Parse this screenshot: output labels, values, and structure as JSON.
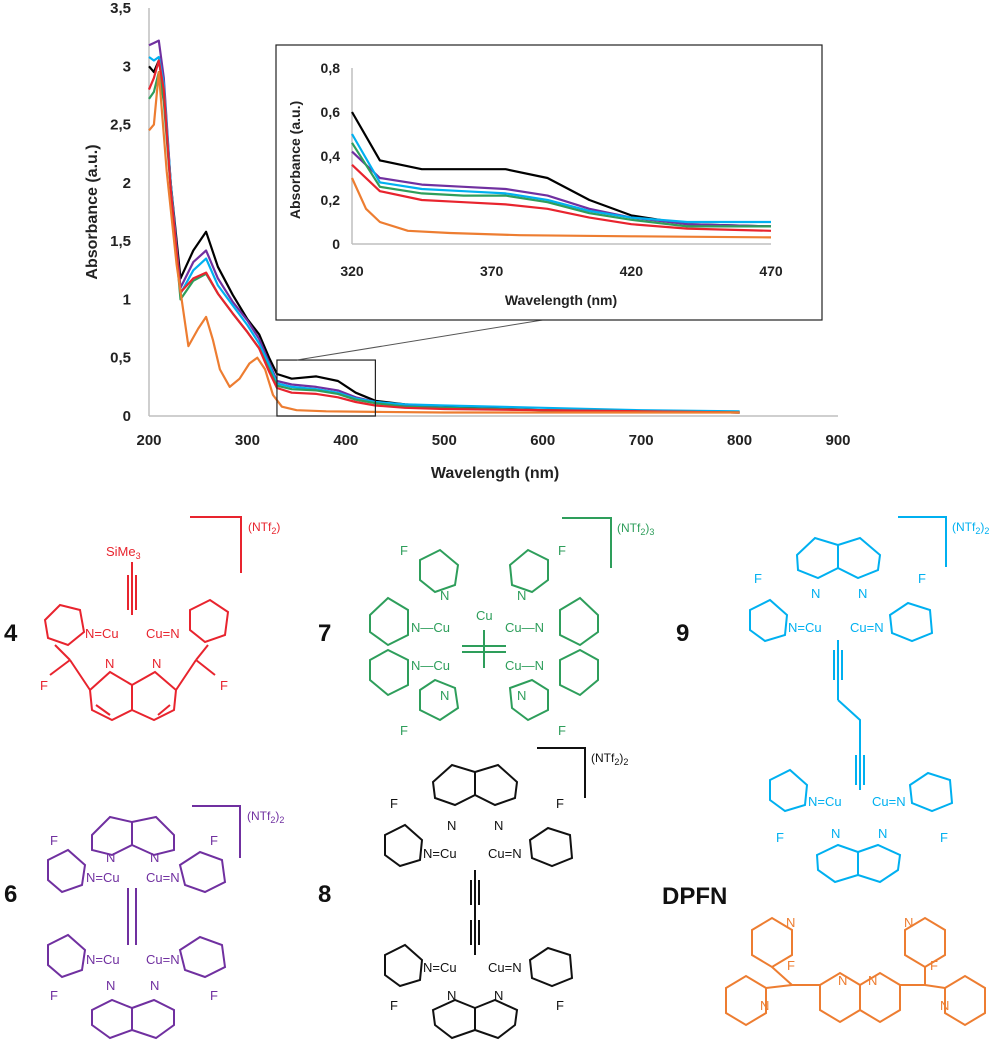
{
  "chart_data": [
    {
      "type": "line",
      "title": "",
      "xlabel": "Wavelength (nm)",
      "ylabel": "Absorbance (a.u.)",
      "xlim": [
        200,
        900
      ],
      "ylim": [
        0,
        3.5
      ],
      "x_ticks": [
        "200",
        "300",
        "400",
        "500",
        "600",
        "700",
        "800",
        "900"
      ],
      "y_ticks": [
        "0",
        "0,5",
        "1",
        "1,5",
        "2",
        "2,5",
        "3",
        "3,5"
      ],
      "grid": false,
      "zoom_box": {
        "x": [
          330,
          430
        ],
        "y": [
          0,
          0.48
        ]
      },
      "series": [
        {
          "color": "#000000",
          "x": [
            200,
            205,
            210,
            215,
            222,
            232,
            245,
            258,
            270,
            285,
            300,
            312,
            322,
            330,
            345,
            370,
            392,
            410,
            430,
            460,
            500,
            600,
            700,
            800
          ],
          "y": [
            3.0,
            2.95,
            3.05,
            2.8,
            2.0,
            1.18,
            1.42,
            1.58,
            1.28,
            1.04,
            0.83,
            0.7,
            0.5,
            0.36,
            0.32,
            0.34,
            0.3,
            0.2,
            0.13,
            0.1,
            0.08,
            0.05,
            0.04,
            0.03
          ]
        },
        {
          "color": "#7030A0",
          "x": [
            200,
            205,
            210,
            215,
            222,
            232,
            245,
            258,
            270,
            285,
            300,
            312,
            322,
            330,
            345,
            370,
            392,
            410,
            430,
            460,
            500,
            600,
            700,
            800
          ],
          "y": [
            3.18,
            3.2,
            3.22,
            2.9,
            2.0,
            1.1,
            1.32,
            1.42,
            1.18,
            0.98,
            0.82,
            0.66,
            0.46,
            0.3,
            0.27,
            0.25,
            0.22,
            0.16,
            0.12,
            0.09,
            0.07,
            0.05,
            0.04,
            0.03
          ]
        },
        {
          "color": "#00B0F0",
          "x": [
            200,
            205,
            210,
            215,
            222,
            232,
            245,
            258,
            270,
            285,
            300,
            312,
            322,
            330,
            345,
            370,
            392,
            410,
            430,
            460,
            500,
            600,
            700,
            800
          ],
          "y": [
            3.08,
            3.05,
            3.08,
            2.85,
            2.0,
            1.05,
            1.25,
            1.35,
            1.12,
            0.95,
            0.78,
            0.62,
            0.44,
            0.28,
            0.25,
            0.23,
            0.2,
            0.15,
            0.12,
            0.1,
            0.09,
            0.07,
            0.05,
            0.04
          ]
        },
        {
          "color": "#2E9E5B",
          "x": [
            200,
            205,
            210,
            215,
            222,
            232,
            245,
            258,
            270,
            285,
            300,
            312,
            322,
            330,
            345,
            370,
            392,
            410,
            430,
            460,
            500,
            600,
            700,
            800
          ],
          "y": [
            2.72,
            2.78,
            2.95,
            2.7,
            1.95,
            1.0,
            1.16,
            1.22,
            1.05,
            0.88,
            0.72,
            0.58,
            0.4,
            0.26,
            0.23,
            0.22,
            0.19,
            0.14,
            0.11,
            0.08,
            0.07,
            0.05,
            0.04,
            0.03
          ]
        },
        {
          "color": "#E8242E",
          "x": [
            200,
            205,
            210,
            215,
            222,
            232,
            245,
            258,
            270,
            285,
            300,
            312,
            322,
            330,
            345,
            370,
            392,
            410,
            430,
            460,
            500,
            600,
            700,
            800
          ],
          "y": [
            2.8,
            2.9,
            3.05,
            2.8,
            1.95,
            1.06,
            1.18,
            1.23,
            1.05,
            0.88,
            0.72,
            0.58,
            0.38,
            0.24,
            0.2,
            0.19,
            0.16,
            0.12,
            0.09,
            0.07,
            0.06,
            0.05,
            0.04,
            0.03
          ]
        },
        {
          "color": "#ED7D31",
          "x": [
            200,
            205,
            210,
            218,
            228,
            240,
            250,
            258,
            265,
            272,
            282,
            292,
            302,
            310,
            318,
            326,
            335,
            350,
            380,
            430,
            500,
            600,
            700,
            800
          ],
          "y": [
            2.45,
            2.5,
            2.95,
            2.1,
            1.3,
            0.6,
            0.75,
            0.85,
            0.65,
            0.4,
            0.25,
            0.32,
            0.45,
            0.5,
            0.4,
            0.18,
            0.08,
            0.05,
            0.04,
            0.035,
            0.03,
            0.03,
            0.03,
            0.03
          ]
        }
      ]
    },
    {
      "type": "line",
      "title": "",
      "xlabel": "Wavelength (nm)",
      "ylabel": "Absorbance (a.u.)",
      "xlim": [
        320,
        470
      ],
      "ylim": [
        0,
        0.8
      ],
      "x_ticks": [
        "320",
        "370",
        "420",
        "470"
      ],
      "y_ticks": [
        "0",
        "0,2",
        "0,4",
        "0,6",
        "0,8"
      ],
      "grid": false,
      "series": [
        {
          "color": "#000000",
          "x": [
            320,
            330,
            345,
            360,
            375,
            390,
            405,
            420,
            440,
            470
          ],
          "y": [
            0.6,
            0.38,
            0.34,
            0.34,
            0.34,
            0.3,
            0.2,
            0.13,
            0.09,
            0.08
          ]
        },
        {
          "color": "#7030A0",
          "x": [
            320,
            330,
            345,
            360,
            375,
            390,
            405,
            420,
            440,
            470
          ],
          "y": [
            0.42,
            0.3,
            0.27,
            0.26,
            0.25,
            0.22,
            0.16,
            0.12,
            0.09,
            0.08
          ]
        },
        {
          "color": "#00B0F0",
          "x": [
            320,
            330,
            345,
            360,
            375,
            390,
            405,
            420,
            440,
            470
          ],
          "y": [
            0.5,
            0.28,
            0.25,
            0.24,
            0.23,
            0.2,
            0.15,
            0.12,
            0.1,
            0.1
          ]
        },
        {
          "color": "#2E9E5B",
          "x": [
            320,
            330,
            345,
            360,
            375,
            390,
            405,
            420,
            440,
            470
          ],
          "y": [
            0.46,
            0.26,
            0.23,
            0.22,
            0.22,
            0.19,
            0.14,
            0.11,
            0.08,
            0.08
          ]
        },
        {
          "color": "#E8242E",
          "x": [
            320,
            330,
            345,
            360,
            375,
            390,
            405,
            420,
            440,
            470
          ],
          "y": [
            0.36,
            0.24,
            0.2,
            0.19,
            0.18,
            0.16,
            0.12,
            0.09,
            0.07,
            0.06
          ]
        },
        {
          "color": "#ED7D31",
          "x": [
            320,
            325,
            330,
            340,
            355,
            380,
            420,
            470
          ],
          "y": [
            0.3,
            0.16,
            0.1,
            0.06,
            0.05,
            0.04,
            0.035,
            0.03
          ]
        }
      ]
    }
  ],
  "compounds": {
    "c4": {
      "number": "4",
      "color": "#E8242E",
      "counterion": "(NTf",
      "counterion_sub": "2",
      "counterion_close": ")",
      "ligand": "SiMe",
      "ligand_sub": "3"
    },
    "c6": {
      "number": "6",
      "color": "#7030A0",
      "counterion": "(NTf",
      "counterion_sub": "2",
      "counterion_close": ")",
      "counterion_sub2": "2"
    },
    "c7": {
      "number": "7",
      "color": "#2E9E5B",
      "counterion": "(NTf",
      "counterion_sub": "2",
      "counterion_close": ")",
      "counterion_sub2": "3"
    },
    "c8": {
      "number": "8",
      "color": "#000000",
      "counterion": "(NTf",
      "counterion_sub": "2",
      "counterion_close": ")",
      "counterion_sub2": "2"
    },
    "c9": {
      "number": "9",
      "color": "#00B0F0",
      "counterion": "(NTf",
      "counterion_sub": "2",
      "counterion_close": ")",
      "counterion_sub2": "2"
    },
    "dpfn": {
      "label": "DPFN",
      "color": "#ED7D31"
    }
  },
  "atoms": {
    "cu": "Cu",
    "n": "N",
    "f": "F"
  }
}
